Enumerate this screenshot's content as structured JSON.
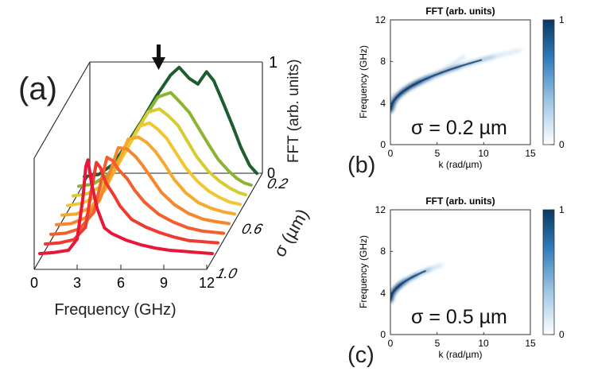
{
  "figure": {
    "panel_a_label": "(a)",
    "panel_b_label": "(b)",
    "panel_c_label": "(c)"
  },
  "chart_data": [
    {
      "panel": "(a)",
      "type": "line",
      "title": "",
      "xlabel": "Frequency (GHz)",
      "ylabel": "FFT (arb. units)",
      "zlabel": "σ (µm)",
      "x_ticks": [
        "0",
        "3",
        "6",
        "9",
        "12"
      ],
      "y_ticks": [
        "0",
        "1"
      ],
      "z_ticks": [
        "0.2",
        "0.6",
        "1.0"
      ],
      "xlim": [
        0,
        12
      ],
      "ylim": [
        0,
        1
      ],
      "zlim": [
        0.1,
        1.1
      ],
      "annotation": "arrow marking peak near 8.5 GHz on σ = 0.2 µm trace",
      "series": [
        {
          "sigma": 1.0,
          "color": "#e8173a",
          "points": [
            [
              0,
              0.02
            ],
            [
              1,
              0.03
            ],
            [
              2,
              0.05
            ],
            [
              2.6,
              0.15
            ],
            [
              3,
              0.52
            ],
            [
              3.2,
              0.8
            ],
            [
              3.35,
              0.86
            ],
            [
              3.6,
              0.65
            ],
            [
              4,
              0.42
            ],
            [
              4.5,
              0.25
            ],
            [
              5,
              0.2
            ],
            [
              6,
              0.14
            ],
            [
              7,
              0.1
            ],
            [
              8,
              0.07
            ],
            [
              9,
              0.05
            ],
            [
              10,
              0.04
            ],
            [
              11,
              0.03
            ],
            [
              12,
              0.02
            ]
          ]
        },
        {
          "sigma": 0.9,
          "color": "#f0392f",
          "points": [
            [
              0,
              0.02
            ],
            [
              1,
              0.03
            ],
            [
              2,
              0.06
            ],
            [
              2.8,
              0.17
            ],
            [
              3.2,
              0.5
            ],
            [
              3.55,
              0.75
            ],
            [
              3.85,
              0.7
            ],
            [
              4.2,
              0.57
            ],
            [
              4.8,
              0.45
            ],
            [
              5.2,
              0.36
            ],
            [
              6,
              0.24
            ],
            [
              7,
              0.17
            ],
            [
              8,
              0.12
            ],
            [
              9,
              0.08
            ],
            [
              10,
              0.05
            ],
            [
              11,
              0.04
            ],
            [
              12,
              0.03
            ]
          ]
        },
        {
          "sigma": 0.8,
          "color": "#f35f2c",
          "points": [
            [
              0,
              0.02
            ],
            [
              1,
              0.03
            ],
            [
              2,
              0.07
            ],
            [
              3,
              0.22
            ],
            [
              3.5,
              0.5
            ],
            [
              3.9,
              0.71
            ],
            [
              4.3,
              0.68
            ],
            [
              4.7,
              0.6
            ],
            [
              5.3,
              0.52
            ],
            [
              5.8,
              0.42
            ],
            [
              6.5,
              0.31
            ],
            [
              7.5,
              0.2
            ],
            [
              8.5,
              0.13
            ],
            [
              9.5,
              0.08
            ],
            [
              10.5,
              0.05
            ],
            [
              12,
              0.03
            ]
          ]
        },
        {
          "sigma": 0.7,
          "color": "#f5862b",
          "points": [
            [
              0,
              0.02
            ],
            [
              1,
              0.03
            ],
            [
              2,
              0.08
            ],
            [
              3,
              0.24
            ],
            [
              3.8,
              0.52
            ],
            [
              4.3,
              0.71
            ],
            [
              4.9,
              0.7
            ],
            [
              5.5,
              0.63
            ],
            [
              6,
              0.55
            ],
            [
              6.6,
              0.44
            ],
            [
              7.3,
              0.31
            ],
            [
              8.2,
              0.2
            ],
            [
              9.2,
              0.12
            ],
            [
              10.2,
              0.07
            ],
            [
              11,
              0.05
            ],
            [
              12,
              0.03
            ]
          ]
        },
        {
          "sigma": 0.6,
          "color": "#f5aa2e",
          "points": [
            [
              0,
              0.02
            ],
            [
              1,
              0.03
            ],
            [
              2,
              0.09
            ],
            [
              3,
              0.25
            ],
            [
              4,
              0.52
            ],
            [
              4.6,
              0.7
            ],
            [
              5.3,
              0.72
            ],
            [
              5.9,
              0.67
            ],
            [
              6.5,
              0.59
            ],
            [
              7.1,
              0.48
            ],
            [
              7.8,
              0.34
            ],
            [
              8.6,
              0.22
            ],
            [
              9.5,
              0.13
            ],
            [
              10.4,
              0.08
            ],
            [
              11.2,
              0.05
            ],
            [
              12,
              0.03
            ]
          ]
        },
        {
          "sigma": 0.5,
          "color": "#f2c632",
          "points": [
            [
              0,
              0.02
            ],
            [
              1,
              0.04
            ],
            [
              2,
              0.1
            ],
            [
              3,
              0.27
            ],
            [
              4.2,
              0.54
            ],
            [
              5,
              0.73
            ],
            [
              5.7,
              0.76
            ],
            [
              6.3,
              0.7
            ],
            [
              6.9,
              0.62
            ],
            [
              7.5,
              0.5
            ],
            [
              8.2,
              0.36
            ],
            [
              9,
              0.24
            ],
            [
              9.8,
              0.15
            ],
            [
              10.6,
              0.09
            ],
            [
              11.3,
              0.05
            ],
            [
              12,
              0.03
            ]
          ]
        },
        {
          "sigma": 0.4,
          "color": "#d6cc32",
          "points": [
            [
              0,
              0.02
            ],
            [
              1,
              0.04
            ],
            [
              2,
              0.11
            ],
            [
              3,
              0.28
            ],
            [
              4.3,
              0.57
            ],
            [
              5.2,
              0.77
            ],
            [
              6,
              0.8
            ],
            [
              6.6,
              0.74
            ],
            [
              7.3,
              0.65
            ],
            [
              7.9,
              0.52
            ],
            [
              8.6,
              0.37
            ],
            [
              9.4,
              0.24
            ],
            [
              10.2,
              0.15
            ],
            [
              10.9,
              0.09
            ],
            [
              11.5,
              0.05
            ],
            [
              12,
              0.03
            ]
          ]
        },
        {
          "sigma": 0.3,
          "color": "#8cb332",
          "points": [
            [
              0,
              0.02
            ],
            [
              1,
              0.04
            ],
            [
              2,
              0.12
            ],
            [
              3,
              0.3
            ],
            [
              4.4,
              0.6
            ],
            [
              5.5,
              0.82
            ],
            [
              6.4,
              0.86
            ],
            [
              7,
              0.78
            ],
            [
              7.7,
              0.68
            ],
            [
              8.3,
              0.55
            ],
            [
              9,
              0.4
            ],
            [
              9.7,
              0.26
            ],
            [
              10.4,
              0.16
            ],
            [
              11,
              0.09
            ],
            [
              11.5,
              0.05
            ],
            [
              12,
              0.03
            ]
          ]
        },
        {
          "sigma": 0.2,
          "color": "#1f5c2f",
          "points": [
            [
              0,
              0.02
            ],
            [
              1,
              0.04
            ],
            [
              2,
              0.13
            ],
            [
              3,
              0.32
            ],
            [
              4,
              0.52
            ],
            [
              5,
              0.74
            ],
            [
              6,
              0.93
            ],
            [
              6.6,
              1.0
            ],
            [
              7.3,
              0.9
            ],
            [
              7.9,
              0.85
            ],
            [
              8.5,
              0.96
            ],
            [
              9,
              0.88
            ],
            [
              9.6,
              0.7
            ],
            [
              10.3,
              0.48
            ],
            [
              10.9,
              0.28
            ],
            [
              11.5,
              0.12
            ],
            [
              12,
              0.05
            ]
          ]
        }
      ]
    },
    {
      "panel": "(b)",
      "type": "heatmap",
      "title": "FFT (arb. units)",
      "xlabel": "k (rad/µm)",
      "ylabel": "Frequency (GHz)",
      "x_ticks": [
        "0",
        "5",
        "10",
        "15"
      ],
      "y_ticks": [
        "0",
        "4",
        "8",
        "12"
      ],
      "xlim": [
        0,
        15
      ],
      "ylim": [
        0,
        12
      ],
      "colorbar_ticks": [
        "0",
        "1"
      ],
      "annotation": "σ = 0.2 µm",
      "dispersion": {
        "f0": 3.3,
        "curvature": 0.0575,
        "k_max": 14,
        "secondary_f0": 4.6,
        "secondary_k_max": 8
      }
    },
    {
      "panel": "(c)",
      "type": "heatmap",
      "title": "FFT (arb. units)",
      "xlabel": "k (rad/µm)",
      "ylabel": "Frequency (GHz)",
      "x_ticks": [
        "0",
        "5",
        "10",
        "15"
      ],
      "y_ticks": [
        "0",
        "4",
        "8",
        "12"
      ],
      "xlim": [
        0,
        15
      ],
      "ylim": [
        0,
        12
      ],
      "colorbar_ticks": [
        "0",
        "1"
      ],
      "annotation": "σ = 0.5 µm",
      "dispersion": {
        "f0": 3.3,
        "curvature": 0.05,
        "k_max": 5.5,
        "secondary_f0": 0,
        "secondary_k_max": 0
      }
    }
  ]
}
